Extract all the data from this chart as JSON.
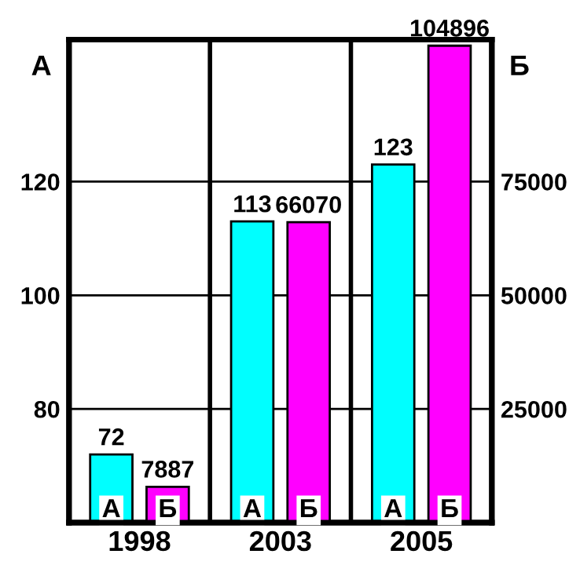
{
  "chart_data": {
    "type": "bar",
    "categories": [
      "1998",
      "2003",
      "2005"
    ],
    "series": [
      {
        "name": "А",
        "color": "#00ffff",
        "values": [
          72,
          113,
          123
        ]
      },
      {
        "name": "Б",
        "color": "#ff00ff",
        "values": [
          7887,
          66070,
          104896
        ],
        "axis": "y2"
      }
    ],
    "ylabel": "А",
    "y2label": "Б",
    "ylim": [
      60,
      145
    ],
    "yticks": [
      80,
      100,
      120
    ],
    "y2lim": [
      0,
      106250
    ],
    "y2ticks": [
      25000,
      50000,
      75000
    ],
    "grid": true,
    "data_labels": true,
    "legend": false
  }
}
